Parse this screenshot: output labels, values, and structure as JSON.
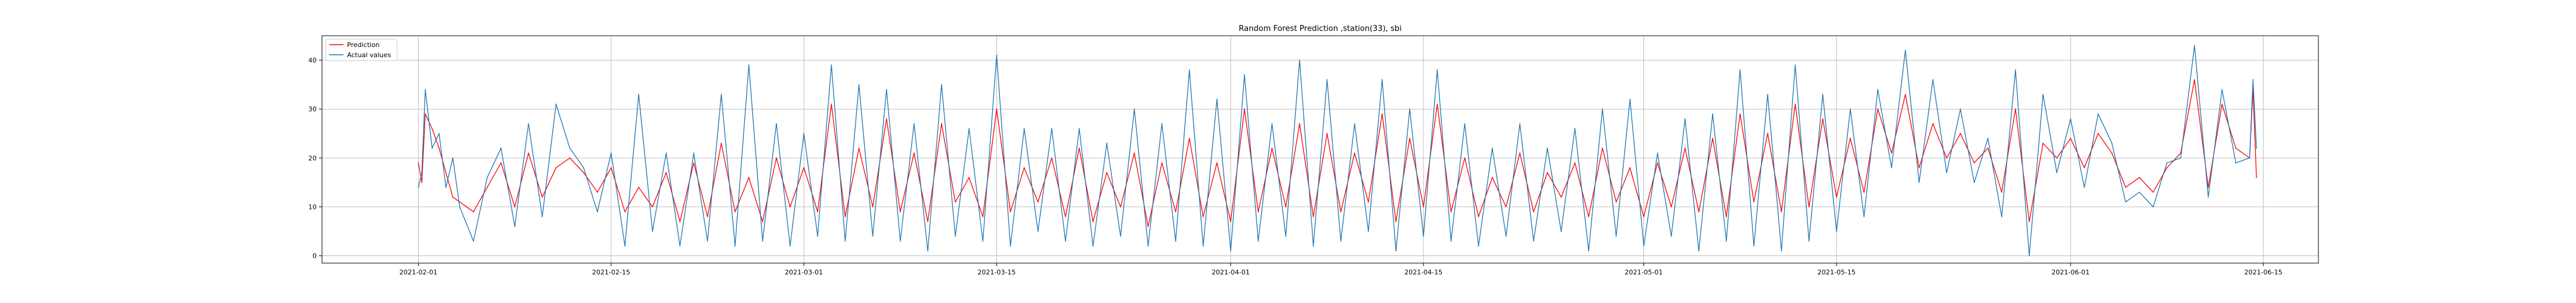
{
  "chart_data": {
    "type": "line",
    "title": "Random Forest Prediction ,station(33), sbi",
    "xlabel": "",
    "ylabel": "",
    "x_axis_type": "date",
    "xlim": [
      "2021-01-25",
      "2021-06-19"
    ],
    "ylim": [
      -1.5,
      45
    ],
    "x_ticks": [
      "2021-02-01",
      "2021-02-15",
      "2021-03-01",
      "2021-03-15",
      "2021-04-01",
      "2021-04-15",
      "2021-05-01",
      "2021-05-15",
      "2021-06-01",
      "2021-06-15"
    ],
    "y_ticks": [
      0,
      10,
      20,
      30,
      40
    ],
    "grid": true,
    "legend_position": "top-left",
    "series": [
      {
        "name": "Prediction",
        "color": "#ff0000",
        "points": [
          [
            "2021-02-01",
            19
          ],
          [
            "2021-02-01T06:00",
            15
          ],
          [
            "2021-02-01T12:00",
            29
          ],
          [
            "2021-02-02",
            26
          ],
          [
            "2021-02-02T12:00",
            22
          ],
          [
            "2021-02-03",
            17
          ],
          [
            "2021-02-03T12:00",
            12
          ],
          [
            "2021-02-04",
            11
          ],
          [
            "2021-02-05",
            9
          ],
          [
            "2021-02-06",
            14
          ],
          [
            "2021-02-07",
            19
          ],
          [
            "2021-02-08",
            10
          ],
          [
            "2021-02-09",
            21
          ],
          [
            "2021-02-10",
            12
          ],
          [
            "2021-02-11",
            18
          ],
          [
            "2021-02-12",
            20
          ],
          [
            "2021-02-13",
            17
          ],
          [
            "2021-02-14",
            13
          ],
          [
            "2021-02-15",
            18
          ],
          [
            "2021-02-16",
            9
          ],
          [
            "2021-02-17",
            14
          ],
          [
            "2021-02-18",
            10
          ],
          [
            "2021-02-19",
            17
          ],
          [
            "2021-02-20",
            7
          ],
          [
            "2021-02-21",
            19
          ],
          [
            "2021-02-22",
            8
          ],
          [
            "2021-02-23",
            23
          ],
          [
            "2021-02-24",
            9
          ],
          [
            "2021-02-25",
            16
          ],
          [
            "2021-02-26",
            7
          ],
          [
            "2021-02-27",
            20
          ],
          [
            "2021-02-28",
            10
          ],
          [
            "2021-03-01",
            18
          ],
          [
            "2021-03-02",
            9
          ],
          [
            "2021-03-03",
            31
          ],
          [
            "2021-03-04",
            8
          ],
          [
            "2021-03-05",
            22
          ],
          [
            "2021-03-06",
            10
          ],
          [
            "2021-03-07",
            28
          ],
          [
            "2021-03-08",
            9
          ],
          [
            "2021-03-09",
            21
          ],
          [
            "2021-03-10",
            7
          ],
          [
            "2021-03-11",
            27
          ],
          [
            "2021-03-12",
            11
          ],
          [
            "2021-03-13",
            16
          ],
          [
            "2021-03-14",
            8
          ],
          [
            "2021-03-15",
            30
          ],
          [
            "2021-03-16",
            9
          ],
          [
            "2021-03-17",
            18
          ],
          [
            "2021-03-18",
            11
          ],
          [
            "2021-03-19",
            20
          ],
          [
            "2021-03-20",
            8
          ],
          [
            "2021-03-21",
            22
          ],
          [
            "2021-03-22",
            7
          ],
          [
            "2021-03-23",
            17
          ],
          [
            "2021-03-24",
            10
          ],
          [
            "2021-03-25",
            21
          ],
          [
            "2021-03-26",
            6
          ],
          [
            "2021-03-27",
            19
          ],
          [
            "2021-03-28",
            9
          ],
          [
            "2021-03-29",
            24
          ],
          [
            "2021-03-30",
            8
          ],
          [
            "2021-03-31",
            19
          ],
          [
            "2021-04-01",
            7
          ],
          [
            "2021-04-02",
            30
          ],
          [
            "2021-04-03",
            9
          ],
          [
            "2021-04-04",
            22
          ],
          [
            "2021-04-05",
            10
          ],
          [
            "2021-04-06",
            27
          ],
          [
            "2021-04-07",
            8
          ],
          [
            "2021-04-08",
            25
          ],
          [
            "2021-04-09",
            9
          ],
          [
            "2021-04-10",
            21
          ],
          [
            "2021-04-11",
            11
          ],
          [
            "2021-04-12",
            29
          ],
          [
            "2021-04-13",
            7
          ],
          [
            "2021-04-14",
            24
          ],
          [
            "2021-04-15",
            10
          ],
          [
            "2021-04-16",
            31
          ],
          [
            "2021-04-17",
            9
          ],
          [
            "2021-04-18",
            20
          ],
          [
            "2021-04-19",
            8
          ],
          [
            "2021-04-20",
            16
          ],
          [
            "2021-04-21",
            10
          ],
          [
            "2021-04-22",
            21
          ],
          [
            "2021-04-23",
            9
          ],
          [
            "2021-04-24",
            17
          ],
          [
            "2021-04-25",
            12
          ],
          [
            "2021-04-26",
            19
          ],
          [
            "2021-04-27",
            8
          ],
          [
            "2021-04-28",
            22
          ],
          [
            "2021-04-29",
            11
          ],
          [
            "2021-04-30",
            18
          ],
          [
            "2021-05-01",
            8
          ],
          [
            "2021-05-02",
            19
          ],
          [
            "2021-05-03",
            10
          ],
          [
            "2021-05-04",
            22
          ],
          [
            "2021-05-05",
            9
          ],
          [
            "2021-05-06",
            24
          ],
          [
            "2021-05-07",
            8
          ],
          [
            "2021-05-08",
            29
          ],
          [
            "2021-05-09",
            11
          ],
          [
            "2021-05-10",
            25
          ],
          [
            "2021-05-11",
            9
          ],
          [
            "2021-05-12",
            31
          ],
          [
            "2021-05-13",
            10
          ],
          [
            "2021-05-14",
            28
          ],
          [
            "2021-05-15",
            12
          ],
          [
            "2021-05-16",
            24
          ],
          [
            "2021-05-17",
            13
          ],
          [
            "2021-05-18",
            30
          ],
          [
            "2021-05-19",
            21
          ],
          [
            "2021-05-20",
            33
          ],
          [
            "2021-05-21",
            18
          ],
          [
            "2021-05-22",
            27
          ],
          [
            "2021-05-23",
            20
          ],
          [
            "2021-05-24",
            25
          ],
          [
            "2021-05-25",
            19
          ],
          [
            "2021-05-26",
            22
          ],
          [
            "2021-05-27",
            13
          ],
          [
            "2021-05-28",
            30
          ],
          [
            "2021-05-29",
            7
          ],
          [
            "2021-05-30",
            23
          ],
          [
            "2021-05-31",
            20
          ],
          [
            "2021-06-01",
            24
          ],
          [
            "2021-06-02",
            18
          ],
          [
            "2021-06-03",
            25
          ],
          [
            "2021-06-04",
            21
          ],
          [
            "2021-06-05",
            14
          ],
          [
            "2021-06-06",
            16
          ],
          [
            "2021-06-07",
            13
          ],
          [
            "2021-06-08",
            18
          ],
          [
            "2021-06-09",
            21
          ],
          [
            "2021-06-10",
            36
          ],
          [
            "2021-06-11",
            14
          ],
          [
            "2021-06-12",
            31
          ],
          [
            "2021-06-13",
            22
          ],
          [
            "2021-06-14",
            20
          ],
          [
            "2021-06-14T06:00",
            34
          ],
          [
            "2021-06-14T12:00",
            16
          ]
        ]
      },
      {
        "name": "Actual values",
        "color": "#1f77b4",
        "points": [
          [
            "2021-02-01",
            14
          ],
          [
            "2021-02-01T06:00",
            17
          ],
          [
            "2021-02-01T12:00",
            34
          ],
          [
            "2021-02-02",
            22
          ],
          [
            "2021-02-02T12:00",
            25
          ],
          [
            "2021-02-03",
            14
          ],
          [
            "2021-02-03T12:00",
            20
          ],
          [
            "2021-02-04",
            10
          ],
          [
            "2021-02-05",
            3
          ],
          [
            "2021-02-06",
            16
          ],
          [
            "2021-02-07",
            22
          ],
          [
            "2021-02-08",
            6
          ],
          [
            "2021-02-09",
            27
          ],
          [
            "2021-02-10",
            8
          ],
          [
            "2021-02-11",
            31
          ],
          [
            "2021-02-12",
            22
          ],
          [
            "2021-02-13",
            18
          ],
          [
            "2021-02-14",
            9
          ],
          [
            "2021-02-15",
            21
          ],
          [
            "2021-02-16",
            2
          ],
          [
            "2021-02-17",
            33
          ],
          [
            "2021-02-18",
            5
          ],
          [
            "2021-02-19",
            21
          ],
          [
            "2021-02-20",
            2
          ],
          [
            "2021-02-21",
            21
          ],
          [
            "2021-02-22",
            3
          ],
          [
            "2021-02-23",
            33
          ],
          [
            "2021-02-24",
            2
          ],
          [
            "2021-02-25",
            39
          ],
          [
            "2021-02-26",
            3
          ],
          [
            "2021-02-27",
            27
          ],
          [
            "2021-02-28",
            2
          ],
          [
            "2021-03-01",
            25
          ],
          [
            "2021-03-02",
            4
          ],
          [
            "2021-03-03",
            39
          ],
          [
            "2021-03-04",
            3
          ],
          [
            "2021-03-05",
            35
          ],
          [
            "2021-03-06",
            4
          ],
          [
            "2021-03-07",
            34
          ],
          [
            "2021-03-08",
            3
          ],
          [
            "2021-03-09",
            27
          ],
          [
            "2021-03-10",
            1
          ],
          [
            "2021-03-11",
            35
          ],
          [
            "2021-03-12",
            4
          ],
          [
            "2021-03-13",
            26
          ],
          [
            "2021-03-14",
            3
          ],
          [
            "2021-03-15",
            41
          ],
          [
            "2021-03-16",
            2
          ],
          [
            "2021-03-17",
            26
          ],
          [
            "2021-03-18",
            5
          ],
          [
            "2021-03-19",
            26
          ],
          [
            "2021-03-20",
            3
          ],
          [
            "2021-03-21",
            26
          ],
          [
            "2021-03-22",
            2
          ],
          [
            "2021-03-23",
            23
          ],
          [
            "2021-03-24",
            4
          ],
          [
            "2021-03-25",
            30
          ],
          [
            "2021-03-26",
            2
          ],
          [
            "2021-03-27",
            27
          ],
          [
            "2021-03-28",
            3
          ],
          [
            "2021-03-29",
            38
          ],
          [
            "2021-03-30",
            2
          ],
          [
            "2021-03-31",
            32
          ],
          [
            "2021-04-01",
            1
          ],
          [
            "2021-04-02",
            37
          ],
          [
            "2021-04-03",
            3
          ],
          [
            "2021-04-04",
            27
          ],
          [
            "2021-04-05",
            4
          ],
          [
            "2021-04-06",
            40
          ],
          [
            "2021-04-07",
            2
          ],
          [
            "2021-04-08",
            36
          ],
          [
            "2021-04-09",
            3
          ],
          [
            "2021-04-10",
            27
          ],
          [
            "2021-04-11",
            5
          ],
          [
            "2021-04-12",
            36
          ],
          [
            "2021-04-13",
            1
          ],
          [
            "2021-04-14",
            30
          ],
          [
            "2021-04-15",
            4
          ],
          [
            "2021-04-16",
            38
          ],
          [
            "2021-04-17",
            3
          ],
          [
            "2021-04-18",
            27
          ],
          [
            "2021-04-19",
            2
          ],
          [
            "2021-04-20",
            22
          ],
          [
            "2021-04-21",
            4
          ],
          [
            "2021-04-22",
            27
          ],
          [
            "2021-04-23",
            3
          ],
          [
            "2021-04-24",
            22
          ],
          [
            "2021-04-25",
            5
          ],
          [
            "2021-04-26",
            26
          ],
          [
            "2021-04-27",
            1
          ],
          [
            "2021-04-28",
            30
          ],
          [
            "2021-04-29",
            4
          ],
          [
            "2021-04-30",
            32
          ],
          [
            "2021-05-01",
            2
          ],
          [
            "2021-05-02",
            21
          ],
          [
            "2021-05-03",
            4
          ],
          [
            "2021-05-04",
            28
          ],
          [
            "2021-05-05",
            1
          ],
          [
            "2021-05-06",
            29
          ],
          [
            "2021-05-07",
            3
          ],
          [
            "2021-05-08",
            38
          ],
          [
            "2021-05-09",
            2
          ],
          [
            "2021-05-10",
            33
          ],
          [
            "2021-05-11",
            1
          ],
          [
            "2021-05-12",
            39
          ],
          [
            "2021-05-13",
            3
          ],
          [
            "2021-05-14",
            33
          ],
          [
            "2021-05-15",
            5
          ],
          [
            "2021-05-16",
            30
          ],
          [
            "2021-05-17",
            8
          ],
          [
            "2021-05-18",
            34
          ],
          [
            "2021-05-19",
            18
          ],
          [
            "2021-05-20",
            42
          ],
          [
            "2021-05-21",
            15
          ],
          [
            "2021-05-22",
            36
          ],
          [
            "2021-05-23",
            17
          ],
          [
            "2021-05-24",
            30
          ],
          [
            "2021-05-25",
            15
          ],
          [
            "2021-05-26",
            24
          ],
          [
            "2021-05-27",
            8
          ],
          [
            "2021-05-28",
            38
          ],
          [
            "2021-05-29",
            0
          ],
          [
            "2021-05-30",
            33
          ],
          [
            "2021-05-31",
            17
          ],
          [
            "2021-06-01",
            28
          ],
          [
            "2021-06-02",
            14
          ],
          [
            "2021-06-03",
            29
          ],
          [
            "2021-06-04",
            23
          ],
          [
            "2021-06-05",
            11
          ],
          [
            "2021-06-06",
            13
          ],
          [
            "2021-06-07",
            10
          ],
          [
            "2021-06-08",
            19
          ],
          [
            "2021-06-09",
            20
          ],
          [
            "2021-06-10",
            43
          ],
          [
            "2021-06-11",
            12
          ],
          [
            "2021-06-12",
            34
          ],
          [
            "2021-06-13",
            19
          ],
          [
            "2021-06-14",
            20
          ],
          [
            "2021-06-14T06:00",
            36
          ],
          [
            "2021-06-14T12:00",
            22
          ]
        ]
      }
    ]
  }
}
